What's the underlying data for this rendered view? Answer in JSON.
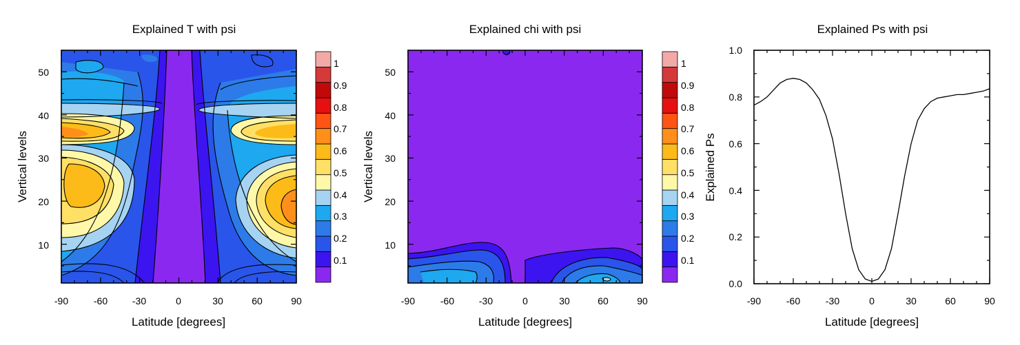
{
  "chart_data": [
    {
      "type": "contour",
      "title": "Explained T with psi",
      "xlabel": "Latitude [degrees]",
      "ylabel": "Vertical levels",
      "xlim": [
        -90,
        90
      ],
      "ylim": [
        1,
        55
      ],
      "xticks": [
        "-90",
        "-60",
        "-30",
        "0",
        "30",
        "60",
        "90"
      ],
      "yticks": [
        "10",
        "20",
        "30",
        "40",
        "50"
      ],
      "regions": [
        {
          "name": "SH upper maximum",
          "lat": -78,
          "lev": 35,
          "value": 0.75
        },
        {
          "name": "SH lower maximum",
          "lat": -70,
          "lev": 22,
          "value": 0.66
        },
        {
          "name": "NH upper maximum",
          "lat": 75,
          "lev": 36,
          "value": 0.65
        },
        {
          "name": "NH lower maximum",
          "lat": 82,
          "lev": 17,
          "value": 0.7
        },
        {
          "name": "equatorial minimum",
          "lat": 0,
          "lev": 28,
          "value": 0.02
        }
      ]
    },
    {
      "type": "contour",
      "title": "Explained chi with psi",
      "xlabel": "Latitude [degrees]",
      "ylabel": "Vertical levels",
      "xlim": [
        -90,
        90
      ],
      "ylim": [
        1,
        55
      ],
      "xticks": [
        "-90",
        "-60",
        "-30",
        "0",
        "30",
        "60",
        "90"
      ],
      "yticks": [
        "10",
        "20",
        "30",
        "40",
        "50"
      ],
      "regions": [
        {
          "name": "SH near-surface maximum",
          "lat": -50,
          "lev": 2,
          "value": 0.3
        },
        {
          "name": "NH near-surface maximum",
          "lat": 62,
          "lev": 2,
          "value": 0.35
        },
        {
          "name": "background",
          "lat": 0,
          "lev": 30,
          "value": 0.02
        }
      ]
    },
    {
      "type": "line",
      "title": "Explained Ps with psi",
      "xlabel": "Latitude [degrees]",
      "ylabel": "Explained Ps",
      "xlim": [
        -90,
        90
      ],
      "ylim": [
        0,
        1
      ],
      "xticks": [
        "-90",
        "-60",
        "-30",
        "0",
        "30",
        "60",
        "90"
      ],
      "yticks": [
        "0.0",
        "0.2",
        "0.4",
        "0.6",
        "0.8",
        "1.0"
      ],
      "series": [
        {
          "name": "Explained Ps",
          "x": [
            -90,
            -85,
            -80,
            -75,
            -70,
            -65,
            -60,
            -55,
            -50,
            -45,
            -40,
            -35,
            -30,
            -25,
            -20,
            -15,
            -10,
            -5,
            0,
            5,
            10,
            15,
            20,
            25,
            30,
            35,
            40,
            45,
            50,
            55,
            60,
            65,
            70,
            75,
            80,
            85,
            90
          ],
          "y": [
            0.765,
            0.78,
            0.8,
            0.83,
            0.86,
            0.875,
            0.88,
            0.875,
            0.86,
            0.83,
            0.79,
            0.72,
            0.62,
            0.47,
            0.3,
            0.15,
            0.06,
            0.02,
            0.01,
            0.02,
            0.06,
            0.15,
            0.3,
            0.46,
            0.6,
            0.7,
            0.75,
            0.78,
            0.795,
            0.8,
            0.805,
            0.81,
            0.81,
            0.815,
            0.82,
            0.825,
            0.835
          ]
        }
      ]
    }
  ],
  "colorbar": {
    "labels": [
      "0.1",
      "0.2",
      "0.3",
      "0.4",
      "0.5",
      "0.6",
      "0.7",
      "0.8",
      "0.9",
      "1"
    ],
    "colors": [
      "#8a28f0",
      "#3c14f0",
      "#2a55ea",
      "#2d7be8",
      "#1ea8f0",
      "#a6d3f2",
      "#fef8a8",
      "#ffe066",
      "#fcbb19",
      "#ff8f1a",
      "#fe5414",
      "#e61010",
      "#c00a0a",
      "#d43a3a",
      "#f4a9a9"
    ]
  }
}
